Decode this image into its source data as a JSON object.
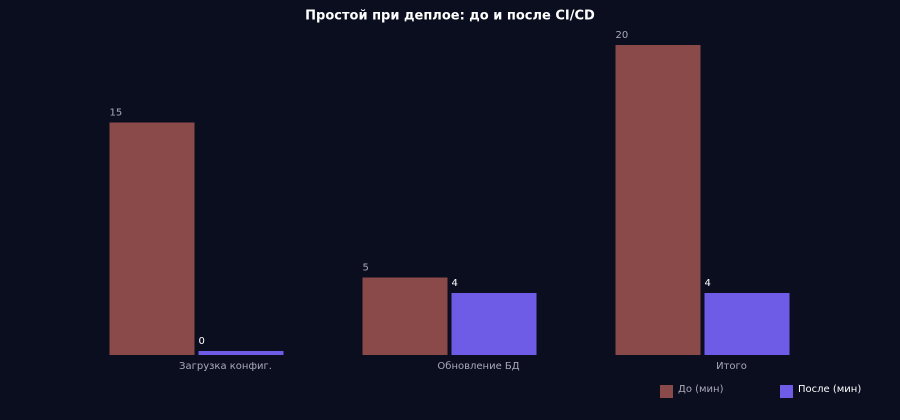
{
  "chart_data": {
    "type": "bar",
    "title": "Простой при деплое: до и после CI/CD",
    "categories": [
      "Загрузка конфиг.",
      "Обновление БД",
      "Итого"
    ],
    "series": [
      {
        "name": "До (мин)",
        "color": "#8b4a4a",
        "values": [
          15,
          5,
          20
        ]
      },
      {
        "name": "После (мин)",
        "color": "#6e5ce6",
        "values": [
          0,
          4,
          4
        ]
      }
    ]
  }
}
